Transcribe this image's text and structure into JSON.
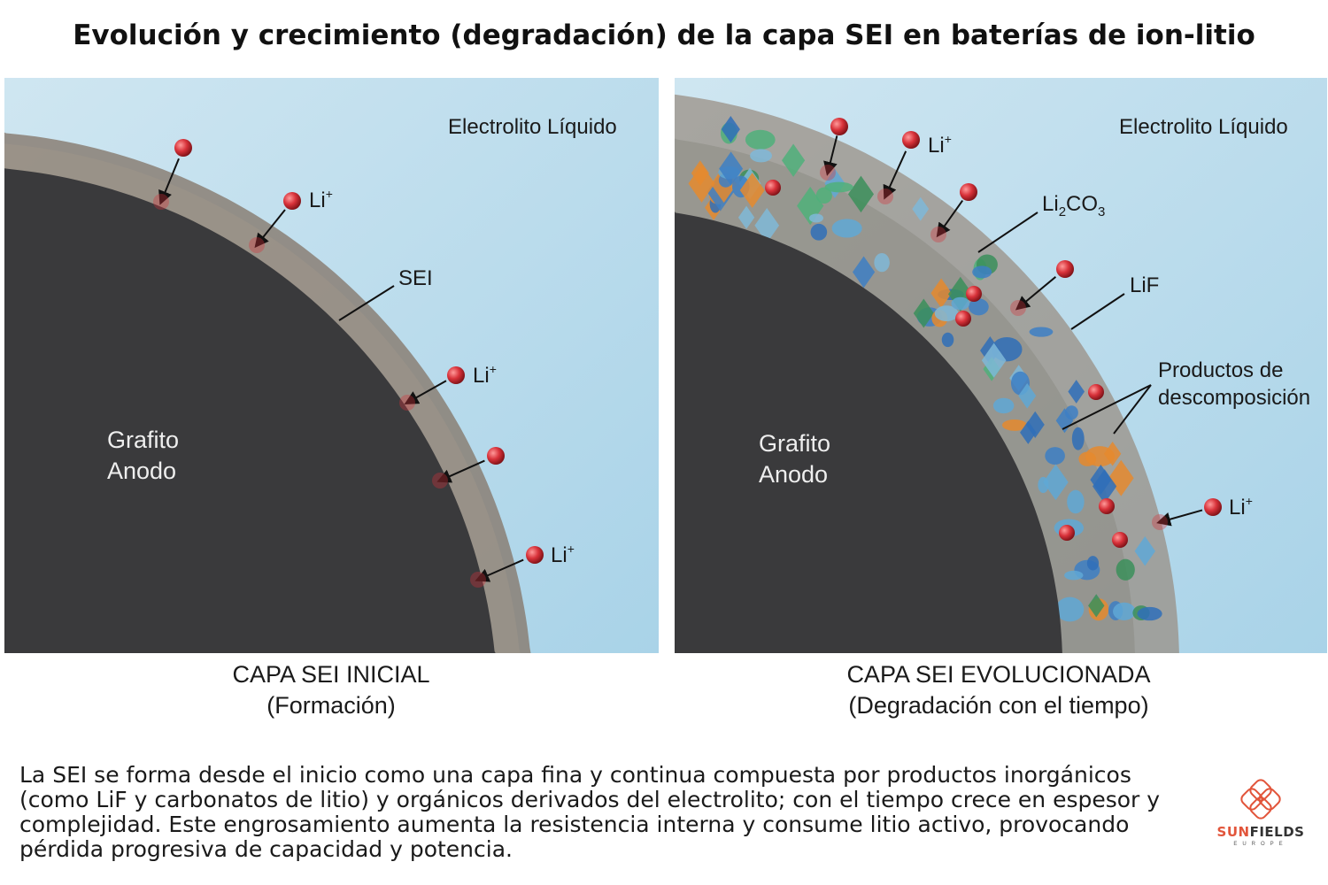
{
  "title": "Evolución y crecimiento (degradación) de la capa SEI en baterías de ion-litio",
  "left_panel": {
    "electrolyte_label": "Electrolito Líquido",
    "sei_label": "SEI",
    "anode_label_line1": "Grafito",
    "anode_label_line2": "Anodo",
    "ion_label": "Li",
    "ion_charge": "+",
    "caption_line1": "CAPA SEI INICIAL",
    "caption_line2": "(Formación)"
  },
  "right_panel": {
    "electrolyte_label": "Electrolito Líquido",
    "li2co3_label": {
      "a": "Li",
      "sub1": "2",
      "b": "CO",
      "sub2": "3"
    },
    "lif_label": "LiF",
    "products_line1": "Productos de",
    "products_line2": "descomposición",
    "anode_label_line1": "Grafito",
    "anode_label_line2": "Anodo",
    "ion_label": "Li",
    "ion_charge": "+",
    "caption_line1": "CAPA SEI EVOLUCIONADA",
    "caption_line2": "(Degradación con el tiempo)"
  },
  "description": "La SEI se forma desde el inicio como una capa fina y continua compuesta por productos inorgánicos (como LiF y carbonatos de litio) y orgánicos derivados del electrolito; con el tiempo crece en espesor y complejidad. Este engrosamiento aumenta la resistencia interna y consume litio activo, provocando pérdida progresiva de capacidad y potencia.",
  "logo": {
    "word_a": "SUN",
    "word_b": "FIELDS",
    "sub": "EUROPE"
  },
  "colors": {
    "electrolyte": "#b9dced",
    "graphite": "#3a3a3c",
    "sei": "#8a7f74",
    "ion": "#d8323a",
    "logo_accent": "#e2553b"
  }
}
